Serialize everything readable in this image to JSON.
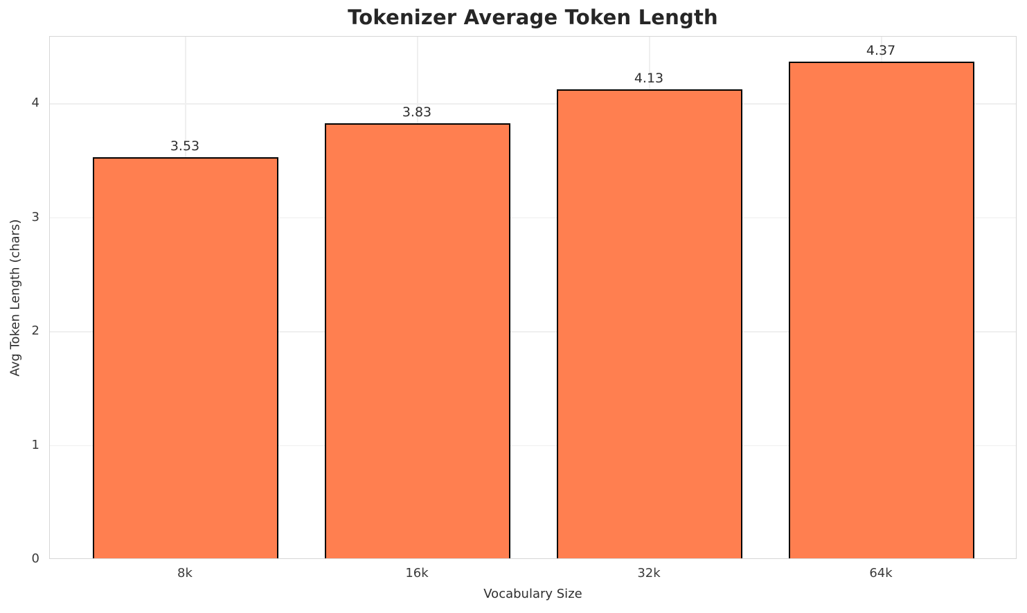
{
  "chart_data": {
    "type": "bar",
    "title": "Tokenizer Average Token Length",
    "xlabel": "Vocabulary Size",
    "ylabel": "Avg Token Length (chars)",
    "categories": [
      "8k",
      "16k",
      "32k",
      "64k"
    ],
    "values": [
      3.53,
      3.83,
      4.13,
      4.37
    ],
    "value_labels": [
      "3.53",
      "3.83",
      "4.13",
      "4.37"
    ],
    "yticks": [
      0,
      1,
      2,
      3,
      4
    ],
    "ytick_labels": [
      "0",
      "1",
      "2",
      "3",
      "4"
    ],
    "ylim": [
      0,
      4.59
    ],
    "xlim": [
      -0.585,
      3.585
    ],
    "bar_width_units": 0.8,
    "grid": true,
    "legend": "none",
    "colors": {
      "bar_fill": "#FF7F50",
      "bar_edge": "#000000",
      "gridline": "#efefef",
      "spine": "#d6d6d6",
      "title_text": "#262626",
      "label_text": "#2e2e2e",
      "tick_text": "#3a3a3a"
    }
  }
}
